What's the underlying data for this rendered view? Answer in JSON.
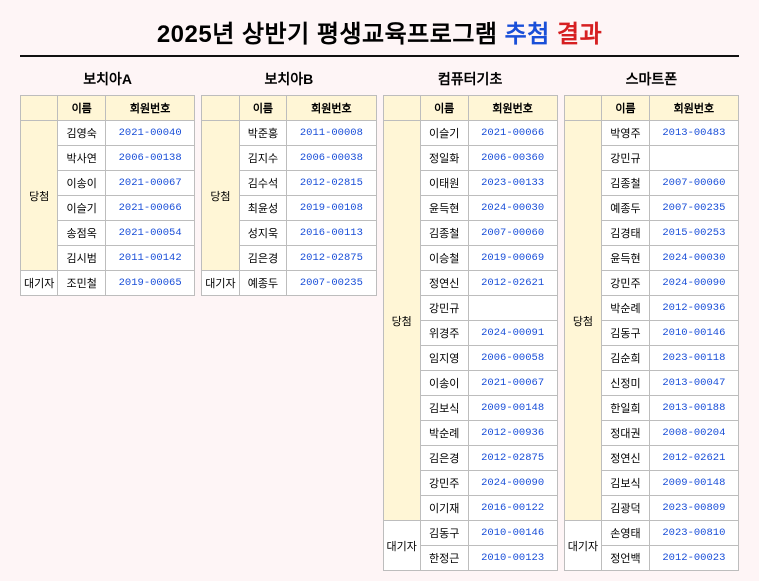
{
  "title_prefix": "2025년 상반기 평생교육프로그램 ",
  "title_blue": "추첨",
  "title_red": " 결과",
  "headers": {
    "name": "이름",
    "member_no": "회원번호"
  },
  "labels": {
    "winner": "당첨",
    "wait": "대기자"
  },
  "tables": [
    {
      "title": "보치아A",
      "winners": [
        {
          "name": "김영숙",
          "no": "2021-00040"
        },
        {
          "name": "박사연",
          "no": "2006-00138"
        },
        {
          "name": "이송이",
          "no": "2021-00067"
        },
        {
          "name": "이슬기",
          "no": "2021-00066"
        },
        {
          "name": "송점옥",
          "no": "2021-00054"
        },
        {
          "name": "김시범",
          "no": "2011-00142"
        }
      ],
      "waitlist": [
        {
          "name": "조민철",
          "no": "2019-00065"
        }
      ]
    },
    {
      "title": "보치아B",
      "winners": [
        {
          "name": "박준홍",
          "no": "2011-00008"
        },
        {
          "name": "김지수",
          "no": "2006-00038"
        },
        {
          "name": "김수석",
          "no": "2012-02815"
        },
        {
          "name": "최윤성",
          "no": "2019-00108"
        },
        {
          "name": "성지욱",
          "no": "2016-00113"
        },
        {
          "name": "김은경",
          "no": "2012-02875"
        }
      ],
      "waitlist": [
        {
          "name": "예종두",
          "no": "2007-00235"
        }
      ]
    },
    {
      "title": "컴퓨터기초",
      "winners": [
        {
          "name": "이슬기",
          "no": "2021-00066"
        },
        {
          "name": "정일화",
          "no": "2006-00360"
        },
        {
          "name": "이태원",
          "no": "2023-00133"
        },
        {
          "name": "윤득현",
          "no": "2024-00030"
        },
        {
          "name": "김종철",
          "no": "2007-00060"
        },
        {
          "name": "이승철",
          "no": "2019-00069"
        },
        {
          "name": "정연신",
          "no": "2012-02621"
        },
        {
          "name": "강민규",
          "no": ""
        },
        {
          "name": "위경주",
          "no": "2024-00091"
        },
        {
          "name": "임지영",
          "no": "2006-00058"
        },
        {
          "name": "이송이",
          "no": "2021-00067"
        },
        {
          "name": "김보식",
          "no": "2009-00148"
        },
        {
          "name": "박순례",
          "no": "2012-00936"
        },
        {
          "name": "김은경",
          "no": "2012-02875"
        },
        {
          "name": "강민주",
          "no": "2024-00090"
        },
        {
          "name": "이기재",
          "no": "2016-00122"
        }
      ],
      "waitlist": [
        {
          "name": "김동구",
          "no": "2010-00146"
        },
        {
          "name": "한정근",
          "no": "2010-00123"
        }
      ]
    },
    {
      "title": "스마트폰",
      "winners": [
        {
          "name": "박영주",
          "no": "2013-00483"
        },
        {
          "name": "강민규",
          "no": ""
        },
        {
          "name": "김종철",
          "no": "2007-00060"
        },
        {
          "name": "예종두",
          "no": "2007-00235"
        },
        {
          "name": "김경태",
          "no": "2015-00253"
        },
        {
          "name": "윤득현",
          "no": "2024-00030"
        },
        {
          "name": "강민주",
          "no": "2024-00090"
        },
        {
          "name": "박순례",
          "no": "2012-00936"
        },
        {
          "name": "김동구",
          "no": "2010-00146"
        },
        {
          "name": "김순희",
          "no": "2023-00118"
        },
        {
          "name": "신정미",
          "no": "2013-00047"
        },
        {
          "name": "한일희",
          "no": "2013-00188"
        },
        {
          "name": "정대권",
          "no": "2008-00204"
        },
        {
          "name": "정연신",
          "no": "2012-02621"
        },
        {
          "name": "김보식",
          "no": "2009-00148"
        },
        {
          "name": "김광덕",
          "no": "2023-00809"
        }
      ],
      "waitlist": [
        {
          "name": "손영태",
          "no": "2023-00810"
        },
        {
          "name": "정언백",
          "no": "2012-00023"
        }
      ]
    }
  ]
}
